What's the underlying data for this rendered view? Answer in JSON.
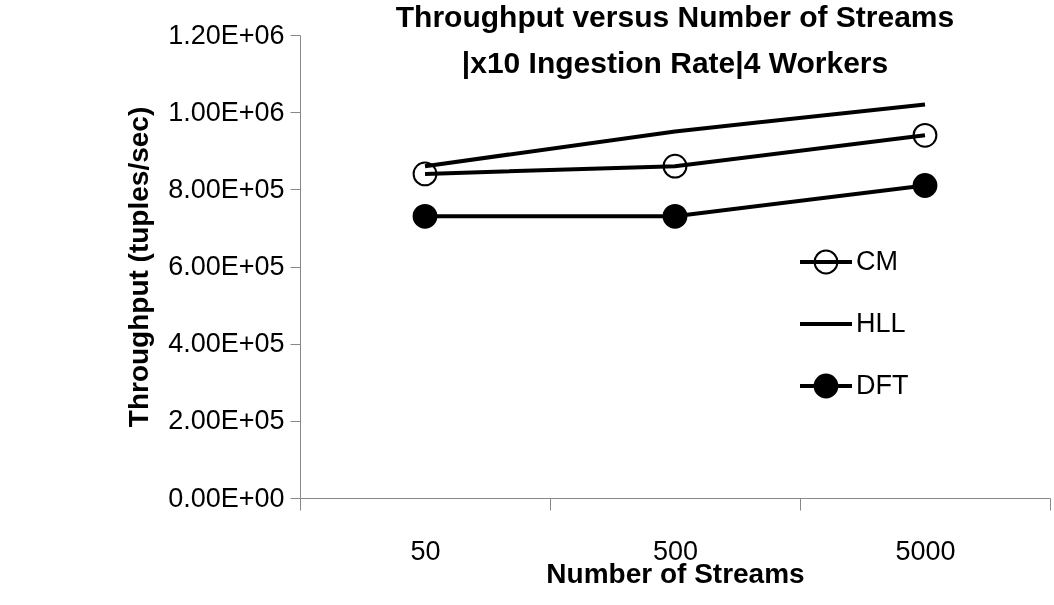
{
  "chart_data": {
    "type": "line",
    "title": "Throughput versus Number of Streams\n|x10 Ingestion Rate|4 Workers",
    "xlabel": "Number of Streams",
    "ylabel": "Throughput (tuples/sec)",
    "categories": [
      "50",
      "500",
      "5000"
    ],
    "series": [
      {
        "name": "CM",
        "color": "#000000",
        "marker": "open-circle",
        "values": [
          840000,
          860000,
          940000
        ]
      },
      {
        "name": "HLL",
        "color": "#000000",
        "marker": "none",
        "values": [
          860000,
          950000,
          1020000
        ]
      },
      {
        "name": "DFT",
        "color": "#000000",
        "marker": "circle",
        "values": [
          730000,
          730000,
          810000
        ]
      }
    ],
    "ylim": [
      0,
      1200000
    ],
    "yticks": [
      {
        "value": 0,
        "label": "0.00E+00"
      },
      {
        "value": 200000,
        "label": "2.00E+05"
      },
      {
        "value": 400000,
        "label": "4.00E+05"
      },
      {
        "value": 600000,
        "label": "6.00E+05"
      },
      {
        "value": 800000,
        "label": "8.00E+05"
      },
      {
        "value": 1000000,
        "label": "1.00E+06"
      },
      {
        "value": 1200000,
        "label": "1.20E+06"
      }
    ],
    "grid": false,
    "legend": "right",
    "line_style": "solid"
  }
}
